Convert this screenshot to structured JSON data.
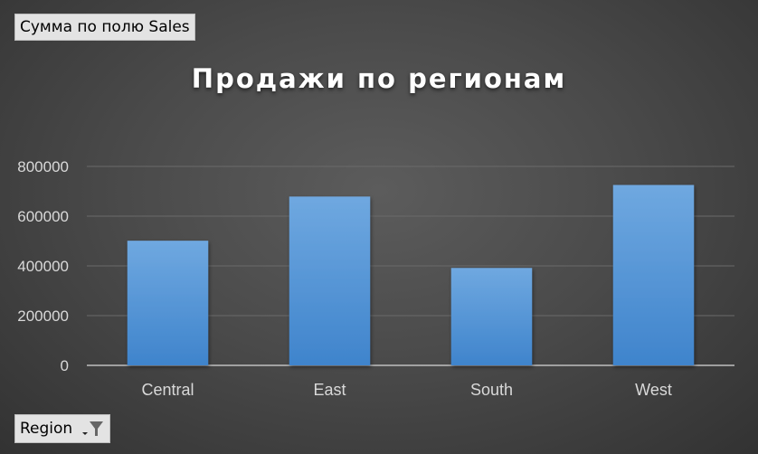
{
  "value_field_label": "Сумма по полю Sales",
  "axis_field_label": "Region",
  "icons": {
    "dropdown": "chevron-down-icon",
    "filter": "filter-icon"
  },
  "colors": {
    "bar_top": "#6fa8e0",
    "bar_bottom": "#3f84cc",
    "grid": "#6a6a6a",
    "axis": "#bfbfbf",
    "text": "#d9d9d9"
  },
  "chart_data": {
    "type": "bar",
    "title": "Продажи по регионам",
    "categories": [
      "Central",
      "East",
      "South",
      "West"
    ],
    "values": [
      501240,
      678781,
      391722,
      725458
    ],
    "ylim": [
      0,
      800000
    ],
    "yticks": [
      0,
      200000,
      400000,
      600000,
      800000
    ],
    "ytick_labels": [
      "0",
      "200000",
      "400000",
      "600000",
      "800000"
    ],
    "xlabel": "",
    "ylabel": "",
    "grid": true,
    "legend": "none"
  }
}
